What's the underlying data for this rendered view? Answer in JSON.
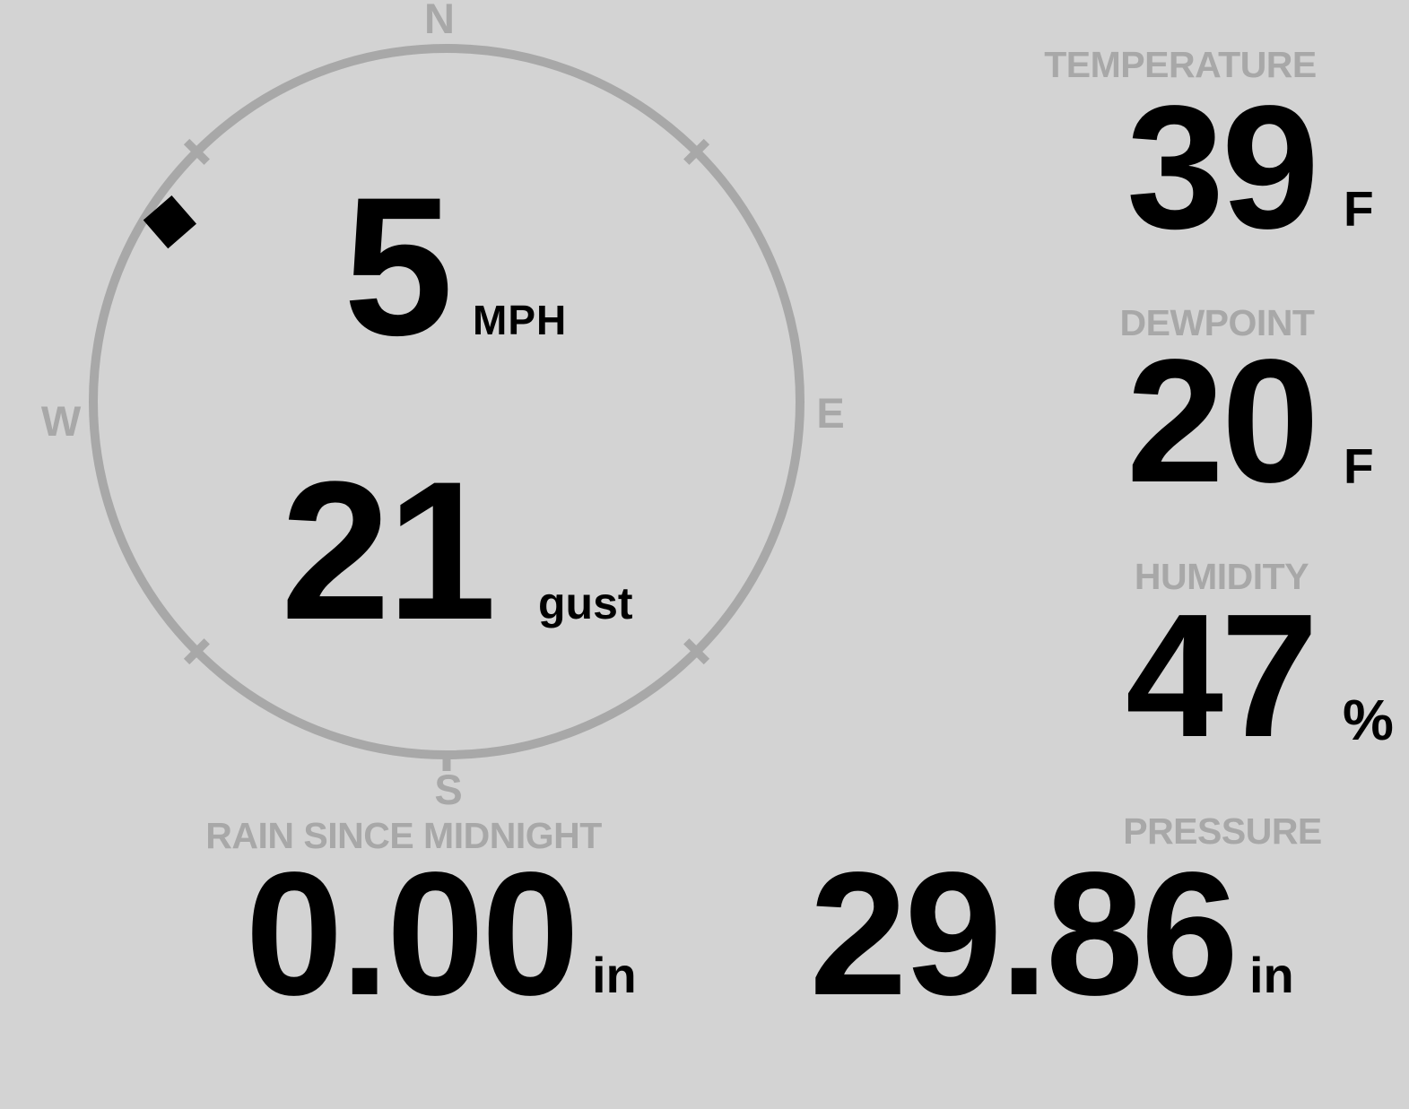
{
  "colors": {
    "background": "#d3d3d3",
    "muted": "#a8a8a8",
    "ink": "#000000"
  },
  "wind": {
    "speed_value": "5",
    "speed_unit": "MPH",
    "gust_value": "21",
    "gust_label": "gust",
    "direction_deg": 303,
    "compass_labels": {
      "north": "N",
      "east": "E",
      "south": "S",
      "west": "W"
    }
  },
  "metrics": {
    "temperature": {
      "label": "TEMPERATURE",
      "value": "39",
      "unit": "F"
    },
    "dewpoint": {
      "label": "DEWPOINT",
      "value": "20",
      "unit": "F"
    },
    "humidity": {
      "label": "HUMIDITY",
      "value": "47",
      "unit": "%"
    },
    "rain_since_midnight": {
      "label": "RAIN SINCE MIDNIGHT",
      "value": "0.00",
      "unit": "in"
    },
    "pressure": {
      "label": "PRESSURE",
      "value": "29.86",
      "unit": "in"
    }
  }
}
